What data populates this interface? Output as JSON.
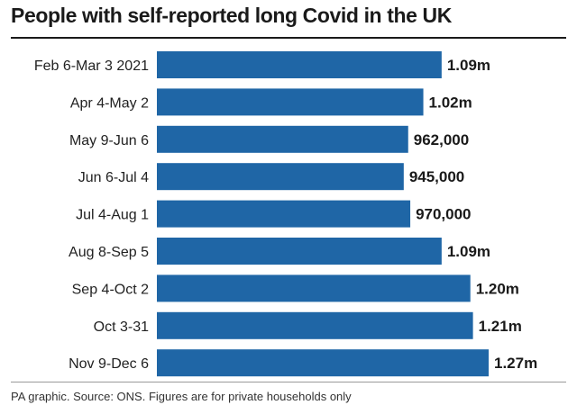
{
  "chart_data": {
    "type": "bar",
    "orientation": "horizontal",
    "title": "People with self-reported long Covid in the UK",
    "categories": [
      "Feb 6-Mar 3 2021",
      "Apr 4-May 2",
      "May 9-Jun 6",
      "Jun 6-Jul 4",
      "Jul 4-Aug 1",
      "Aug 8-Sep 5",
      "Sep 4-Oct 2",
      "Oct 3-31",
      "Nov 9-Dec 6"
    ],
    "values": [
      1090000,
      1020000,
      962000,
      945000,
      970000,
      1090000,
      1200000,
      1210000,
      1270000
    ],
    "value_labels": [
      "1.09m",
      "1.02m",
      "962,000",
      "945,000",
      "970,000",
      "1.09m",
      "1.20m",
      "1.21m",
      "1.27m"
    ],
    "xlim": [
      0,
      1270000
    ],
    "bar_color": "#1f66a6",
    "source": "PA graphic. Source: ONS. Figures are for private households only"
  }
}
